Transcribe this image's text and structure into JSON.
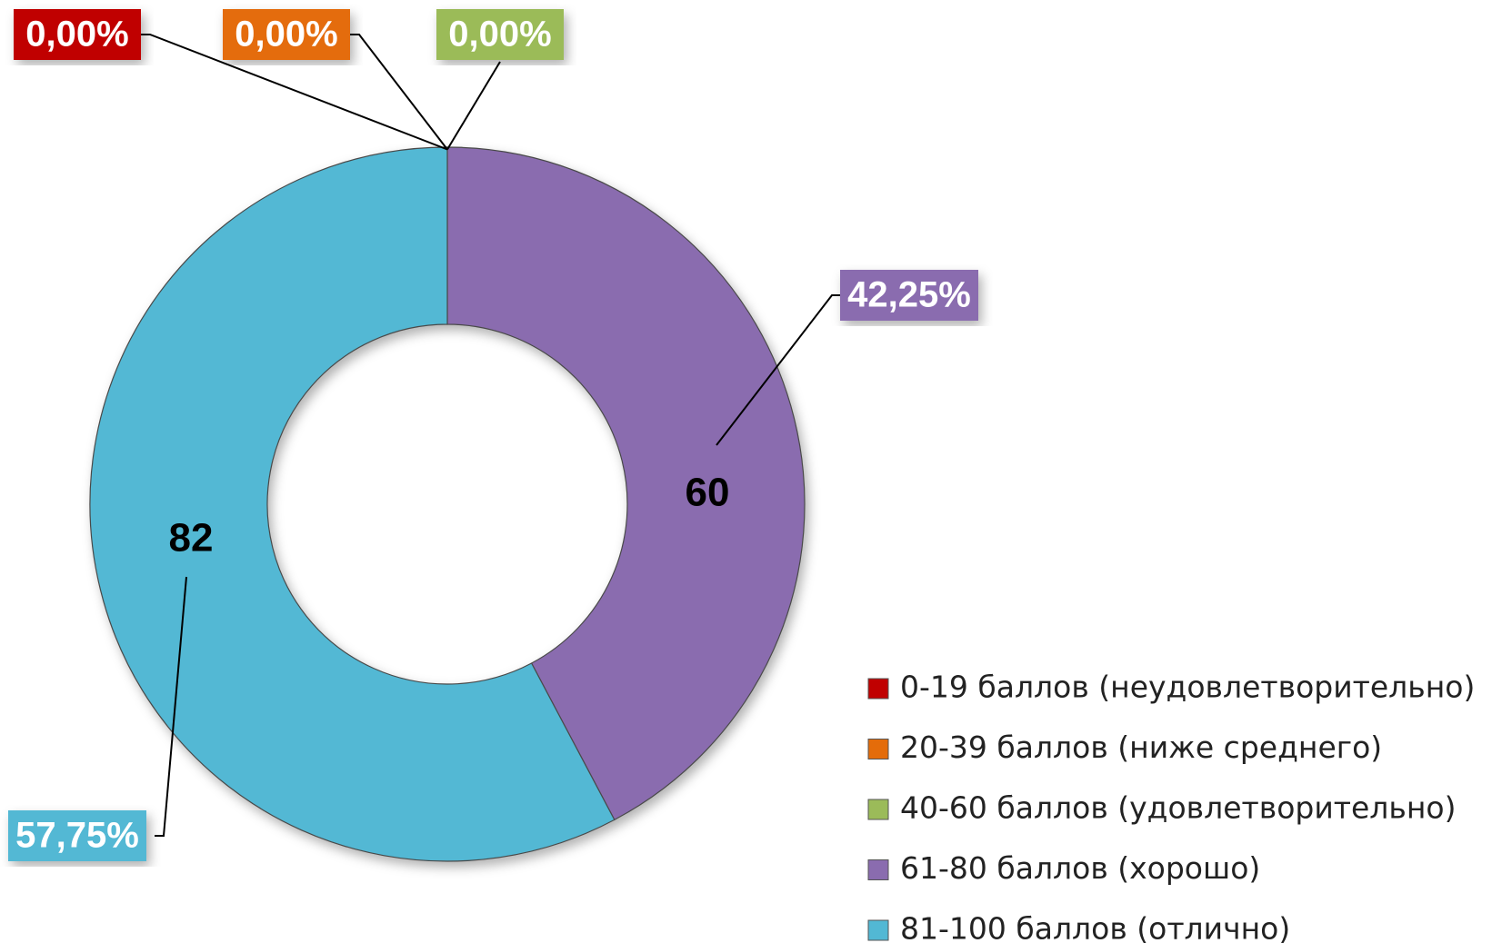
{
  "chart_data": {
    "type": "donut",
    "categories": [
      "0-19 баллов (неудовлетворительно)",
      "20-39 баллов (ниже среднего)",
      "40-60 баллов (удовлетворительно)",
      "61-80 баллов (хорошо)",
      "81-100 баллов (отлично)"
    ],
    "values": [
      0,
      0,
      0,
      60,
      82
    ],
    "value_labels": [
      "0,00%",
      "0,00%",
      "0,00%",
      "42,25%",
      "57,75%"
    ],
    "colors": [
      "#c00000",
      "#e46c0a",
      "#9bbb59",
      "#8a6caf",
      "#52b8d4"
    ],
    "legend": "bottom-right"
  }
}
